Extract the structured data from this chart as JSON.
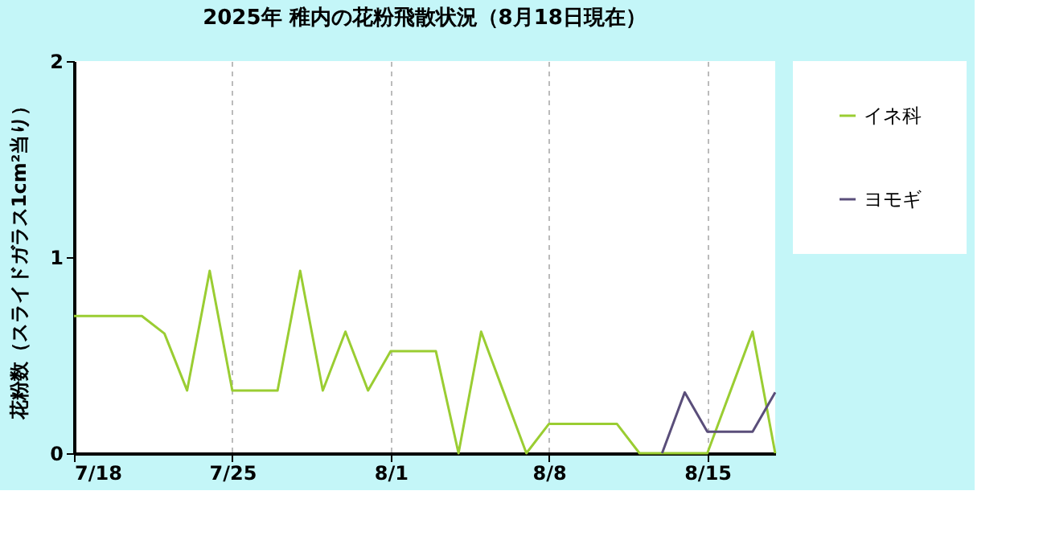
{
  "chart_data": {
    "type": "line",
    "title": "2025年  稚内の花粉飛散状況（8月18日現在）",
    "ylabel": "花粉数（スライドガラス1cm²当り）",
    "xlim": [
      "2025-07-18",
      "2025-08-18"
    ],
    "xticks": [
      {
        "value": "2025-07-18",
        "label": "7/18"
      },
      {
        "value": "2025-07-25",
        "label": "7/25"
      },
      {
        "value": "2025-08-01",
        "label": "8/1"
      },
      {
        "value": "2025-08-08",
        "label": "8/8"
      },
      {
        "value": "2025-08-15",
        "label": "8/15"
      }
    ],
    "ylim": [
      0,
      2
    ],
    "yticks": [
      0,
      1,
      2
    ],
    "grid": "x",
    "legend": "right",
    "marker": "none",
    "line_style": "solid",
    "series": [
      {
        "name": "イネ科",
        "color": "#9acd32",
        "x": [
          "2025-07-18",
          "2025-07-19",
          "2025-07-20",
          "2025-07-21",
          "2025-07-22",
          "2025-07-23",
          "2025-07-24",
          "2025-07-25",
          "2025-07-26",
          "2025-07-27",
          "2025-07-28",
          "2025-07-29",
          "2025-07-30",
          "2025-07-31",
          "2025-08-01",
          "2025-08-02",
          "2025-08-03",
          "2025-08-04",
          "2025-08-05",
          "2025-08-06",
          "2025-08-07",
          "2025-08-08",
          "2025-08-09",
          "2025-08-10",
          "2025-08-11",
          "2025-08-12",
          "2025-08-13",
          "2025-08-14",
          "2025-08-15",
          "2025-08-16",
          "2025-08-17",
          "2025-08-18"
        ],
        "values": [
          0.7,
          0.7,
          0.7,
          0.7,
          0.61,
          0.32,
          0.93,
          0.32,
          0.32,
          0.32,
          0.93,
          0.32,
          0.62,
          0.32,
          0.52,
          0.52,
          0.52,
          0,
          0.62,
          0.31,
          0,
          0.15,
          0.15,
          0.15,
          0.15,
          0,
          0,
          0,
          0,
          0.31,
          0.62,
          0
        ]
      },
      {
        "name": "ヨモギ",
        "color": "#5a4e7a",
        "x": [
          "2025-08-13",
          "2025-08-14",
          "2025-08-15",
          "2025-08-16",
          "2025-08-17",
          "2025-08-18"
        ],
        "values": [
          0,
          0.31,
          0.11,
          0.11,
          0.11,
          0.31
        ]
      }
    ]
  }
}
